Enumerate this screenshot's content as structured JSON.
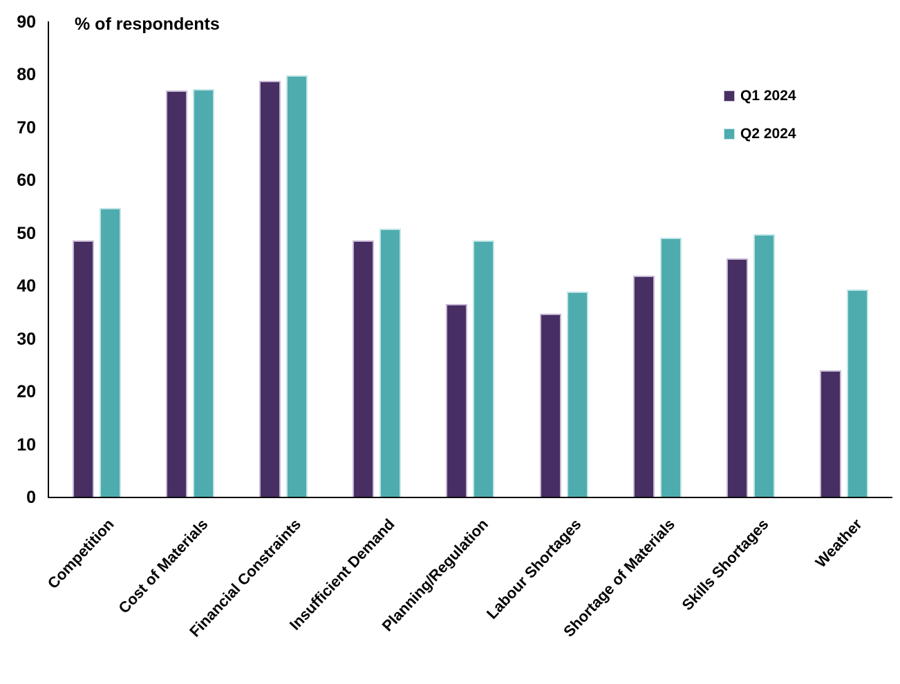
{
  "chart_data": {
    "type": "bar",
    "title": "% of respondents",
    "categories": [
      "Competition",
      "Cost of Materials",
      "Financial Constraints",
      "Insufficient Demand",
      "Planning/Regulation",
      "Labour Shortages",
      "Shortage of Materials",
      "Skills Shortages",
      "Weather"
    ],
    "series": [
      {
        "name": "Q1 2024",
        "color": "#472f63",
        "edge_color": "#c6b8d4",
        "values": [
          48.5,
          76.9,
          78.8,
          48.5,
          36.5,
          34.7,
          41.9,
          45.1,
          23.9
        ]
      },
      {
        "name": "Q2 2024",
        "color": "#4eacaf",
        "edge_color": "#c2e5e6",
        "values": [
          54.7,
          77.2,
          79.8,
          50.8,
          48.5,
          38.9,
          49.0,
          49.7,
          39.2
        ]
      }
    ],
    "ylim": [
      0,
      90
    ],
    "yticks": [
      0,
      10,
      20,
      30,
      40,
      50,
      60,
      70,
      80,
      90
    ],
    "ylabel": "",
    "xlabel": "",
    "grid": false,
    "legend_position": "top-right",
    "x_tick_rotation_deg": 47
  }
}
